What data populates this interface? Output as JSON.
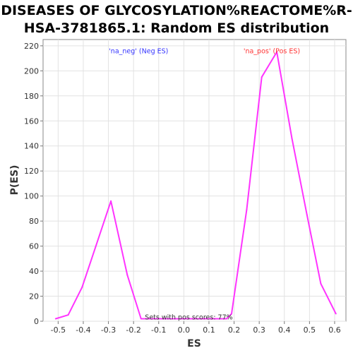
{
  "chart_data": {
    "type": "line",
    "title": "DISEASES OF GLYCOSYLATION%REACTOME%R-HSA-3781865.1: Random ES distribution",
    "title_lines": [
      "DISEASES OF GLYCOSYLATION%REACTOME%R-",
      "HSA-3781865.1: Random ES distribution"
    ],
    "xlabel": "ES",
    "ylabel": "P(ES)",
    "xlim": [
      -0.56,
      0.645
    ],
    "ylim": [
      0,
      225
    ],
    "x_ticks": [
      "-0.5",
      "-0.4",
      "-0.3",
      "-0.2",
      "-0.1",
      "0.0",
      "0.1",
      "0.2",
      "0.3",
      "0.4",
      "0.5",
      "0.6"
    ],
    "y_ticks": [
      "0",
      "20",
      "40",
      "60",
      "80",
      "100",
      "120",
      "140",
      "160",
      "180",
      "200",
      "220"
    ],
    "grid": true,
    "series": [
      {
        "name": "",
        "color": "#ff33ff",
        "x": [
          -0.51,
          -0.46,
          -0.405,
          -0.35,
          -0.29,
          -0.225,
          -0.17,
          0.17,
          0.19,
          0.25,
          0.31,
          0.37,
          0.43,
          0.49,
          0.545,
          0.605
        ],
        "y": [
          2,
          5,
          27,
          60,
          96,
          37,
          2,
          2,
          6,
          89,
          195,
          215,
          146,
          85,
          30,
          6
        ]
      }
    ],
    "annotations": [
      {
        "text": "'na_neg' (Neg ES)",
        "color": "#3333ff",
        "x": -0.18,
        "y": 214
      },
      {
        "text": "'na_pos' (Pos ES)",
        "color": "#ff3333",
        "x": 0.35,
        "y": 214
      },
      {
        "text": "Sets with pos scores: 77%",
        "color": "#333333",
        "x": 0.02,
        "y": 1.5
      }
    ]
  }
}
